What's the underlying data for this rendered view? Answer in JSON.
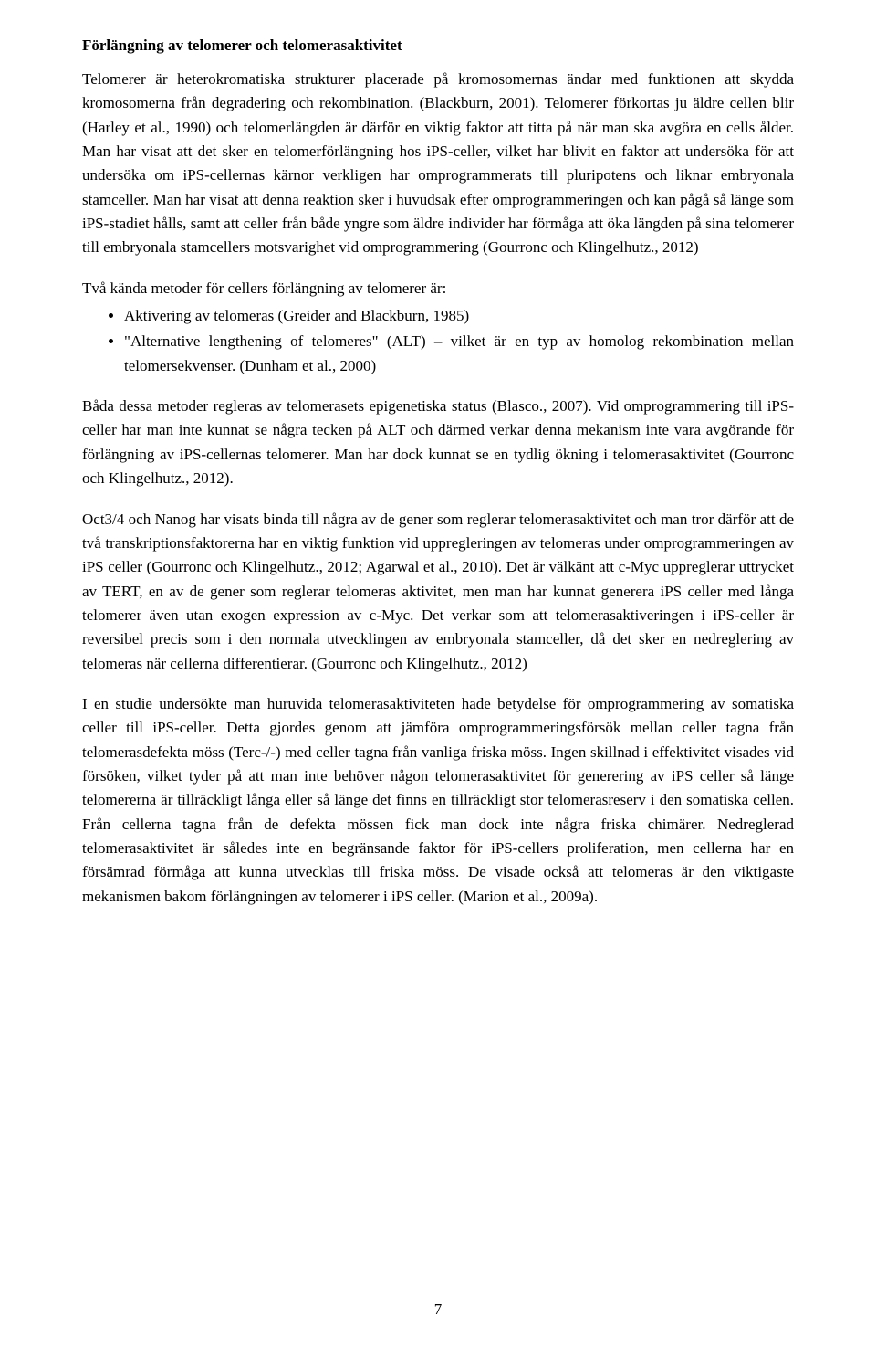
{
  "heading": "Förlängning av telomerer och telomerasaktivitet",
  "p1": "Telomerer är heterokromatiska strukturer placerade på kromosomernas ändar med funktionen att skydda kromosomerna från degradering och rekombination. (Blackburn, 2001). Telomerer förkortas ju äldre cellen blir (Harley et al., 1990) och telomerlängden är därför en viktig faktor att titta på när man ska avgöra en cells ålder. Man har visat att det sker en telomerförlängning hos iPS-celler, vilket har blivit en faktor att undersöka för att undersöka om iPS-cellernas kärnor verkligen har omprogrammerats till pluripotens och liknar embryonala stamceller. Man har visat att denna reaktion sker i huvudsak efter omprogrammeringen och kan pågå så länge som iPS-stadiet hålls, samt att celler från både yngre som äldre individer har förmåga att öka längden på sina telomerer till embryonala stamcellers motsvarighet vid omprogrammering (Gourronc och Klingelhutz., 2012)",
  "list_intro": "Två kända metoder för cellers förlängning av telomerer är:",
  "bullets": [
    "Aktivering av telomeras (Greider and Blackburn, 1985)",
    "\"Alternative lengthening of telomeres\" (ALT) – vilket är en typ av homolog rekombination mellan telomersekvenser. (Dunham et al., 2000)"
  ],
  "p2": "Båda dessa metoder regleras av telomerasets epigenetiska status (Blasco., 2007). Vid omprogrammering till iPS-celler har man inte kunnat se några tecken på ALT och därmed verkar denna mekanism inte vara avgörande för förlängning av iPS-cellernas telomerer. Man har dock kunnat se en tydlig ökning i telomerasaktivitet (Gourronc och Klingelhutz., 2012).",
  "p3": "Oct3/4 och Nanog har visats binda till några av de gener som reglerar telomerasaktivitet och man tror därför att de två transkriptionsfaktorerna har en viktig funktion vid uppregleringen av telomeras under omprogrammeringen av iPS celler (Gourronc och Klingelhutz., 2012; Agarwal et al., 2010). Det är välkänt att c-Myc uppreglerar uttrycket av TERT, en av de gener som reglerar telomeras aktivitet, men man har kunnat generera iPS celler med långa telomerer även utan exogen expression av c-Myc. Det verkar som att telomerasaktiveringen i iPS-celler är reversibel precis som i den normala utvecklingen av embryonala stamceller, då det sker en nedreglering av telomeras när cellerna differentierar. (Gourronc och Klingelhutz., 2012)",
  "p4": "I en studie undersökte man huruvida telomerasaktiviteten hade betydelse för omprogrammering av somatiska celler till iPS-celler. Detta gjordes genom att jämföra omprogrammeringsförsök mellan celler tagna från telomerasdefekta möss (Terc-/-) med celler tagna från vanliga friska möss. Ingen skillnad i effektivitet visades vid försöken, vilket tyder på att man inte behöver någon telomerasaktivitet för generering av iPS celler så länge telomererna är tillräckligt långa eller så länge det finns en tillräckligt stor telomerasreserv i den somatiska cellen. Från cellerna tagna från de defekta mössen fick man dock inte några friska chimärer. Nedreglerad telomerasaktivitet är således inte en begränsande faktor för iPS-cellers proliferation, men cellerna har en försämrad förmåga att kunna utvecklas till friska möss. De visade också att telomeras är den viktigaste mekanismen bakom förlängningen av telomerer i iPS celler. (Marion et al., 2009a).",
  "page_number": "7"
}
